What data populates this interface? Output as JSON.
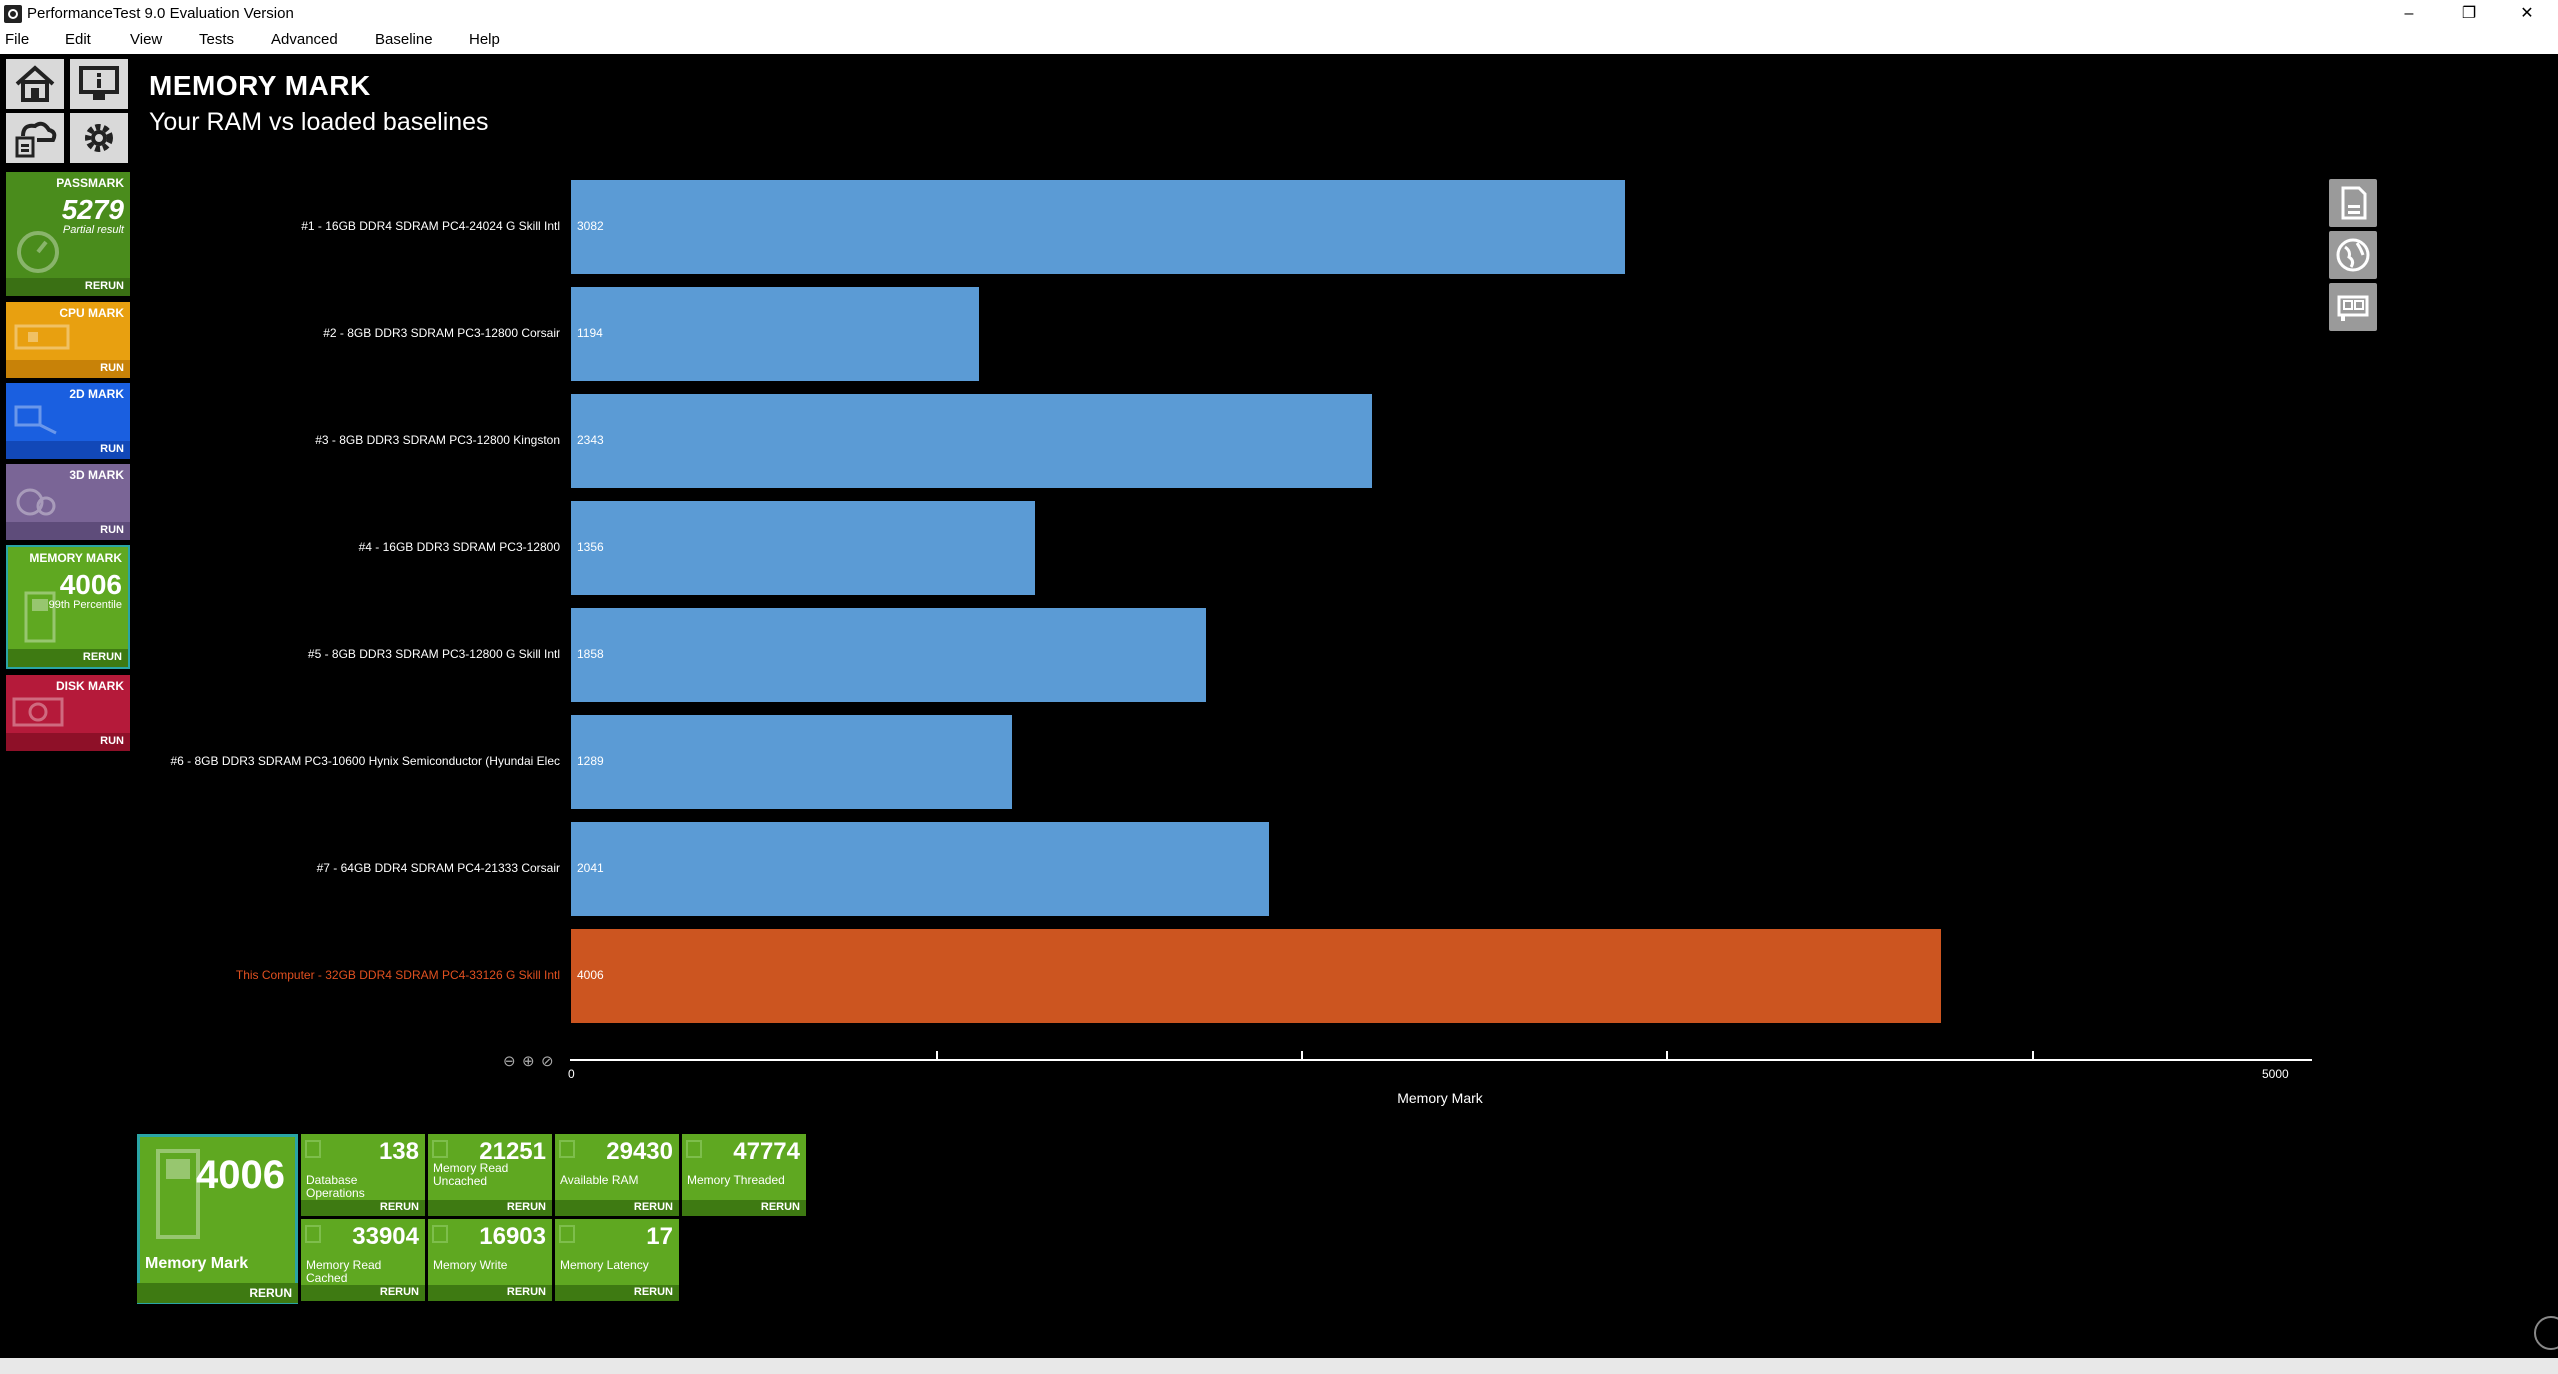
{
  "window": {
    "title": "PerformanceTest 9.0 Evaluation Version",
    "minimize": "–",
    "maximize": "❐",
    "close": "✕"
  },
  "menu": [
    "File",
    "Edit",
    "View",
    "Tests",
    "Advanced",
    "Baseline",
    "Help"
  ],
  "nav": {
    "home": "home-icon",
    "system_info": "monitor-info-icon",
    "cloud": "cloud-upload-icon",
    "settings": "gear-icon"
  },
  "tiles": {
    "passmark": {
      "name": "PASSMARK",
      "score": "5279",
      "sub": "Partial result",
      "action": "RERUN",
      "color": "#4a8c1c"
    },
    "cpu": {
      "name": "CPU MARK",
      "action": "RUN",
      "color": "#e8a010"
    },
    "d2": {
      "name": "2D MARK",
      "action": "RUN",
      "color": "#1a5fe0"
    },
    "d3": {
      "name": "3D MARK",
      "action": "RUN",
      "color": "#7a6596"
    },
    "memory": {
      "name": "MEMORY MARK",
      "score": "4006",
      "sub": "99th Percentile",
      "action": "RERUN",
      "color": "#5fa821"
    },
    "disk": {
      "name": "DISK MARK",
      "action": "RUN",
      "color": "#b51a3a"
    }
  },
  "page": {
    "title": "MEMORY MARK",
    "subtitle": "Your RAM vs loaded baselines"
  },
  "side_icons": [
    "export-document-icon",
    "globe-icon",
    "hardware-card-icon"
  ],
  "chart_data": {
    "type": "bar",
    "orientation": "horizontal",
    "xlabel": "Memory Mark",
    "xlim": [
      0,
      5000
    ],
    "xticks": [
      "0",
      "5000"
    ],
    "minor_ticks": [
      1250,
      2500,
      3750,
      5000
    ],
    "categories": [
      "#1 - 16GB DDR4 SDRAM PC4-24024 G Skill Intl",
      "#2 - 8GB DDR3 SDRAM PC3-12800 Corsair",
      "#3 - 8GB DDR3 SDRAM PC3-12800 Kingston",
      "#4 - 16GB DDR3 SDRAM PC3-12800",
      "#5 - 8GB DDR3 SDRAM PC3-12800 G Skill Intl",
      "#6 - 8GB DDR3 SDRAM PC3-10600 Hynix Semiconductor (Hyundai Elec",
      "#7 - 64GB DDR4 SDRAM PC4-21333 Corsair",
      "This Computer - 32GB DDR4 SDRAM PC4-33126 G Skill Intl"
    ],
    "values": [
      3082,
      1194,
      2343,
      1356,
      1858,
      1289,
      2041,
      4006
    ],
    "colors": [
      "#5b9bd5",
      "#5b9bd5",
      "#5b9bd5",
      "#5b9bd5",
      "#5b9bd5",
      "#5b9bd5",
      "#5b9bd5",
      "#cc5520"
    ],
    "label_colors": [
      "#ffffff",
      "#ffffff",
      "#ffffff",
      "#ffffff",
      "#ffffff",
      "#ffffff",
      "#ffffff",
      "#e05020"
    ],
    "grid": false
  },
  "zoom_icons": [
    "zoom-out-icon",
    "zoom-in-icon",
    "zoom-reset-icon"
  ],
  "results": {
    "main": {
      "value": "4006",
      "label": "Memory Mark",
      "action": "RERUN"
    },
    "subtests": [
      {
        "value": "138",
        "label": "Database Operations",
        "action": "RERUN"
      },
      {
        "value": "21251",
        "label": "Memory Read Uncached",
        "action": "RERUN"
      },
      {
        "value": "29430",
        "label": "Available RAM",
        "action": "RERUN"
      },
      {
        "value": "47774",
        "label": "Memory Threaded",
        "action": "RERUN"
      },
      {
        "value": "33904",
        "label": "Memory Read Cached",
        "action": "RERUN"
      },
      {
        "value": "16903",
        "label": "Memory Write",
        "action": "RERUN"
      },
      {
        "value": "17",
        "label": "Memory Latency",
        "action": "RERUN"
      }
    ]
  }
}
